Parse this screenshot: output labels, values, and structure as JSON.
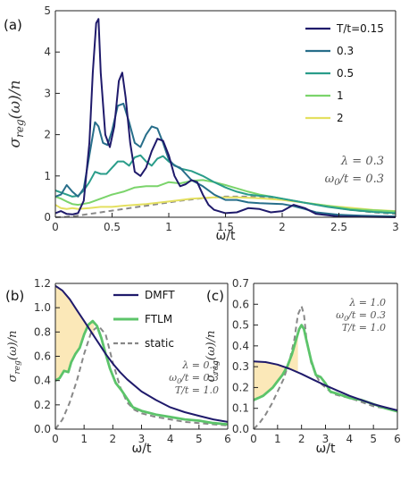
{
  "chart_data": [
    {
      "panel": "(a)",
      "type": "line",
      "xlabel": "ω/t",
      "ylabel": "σreg(ω)/n",
      "xlim": [
        0,
        3
      ],
      "ylim": [
        0,
        5
      ],
      "xticks": [
        "0",
        "0.5",
        "1",
        "1.5",
        "2",
        "2.5",
        "3"
      ],
      "yticks": [
        "0",
        "1",
        "2",
        "3",
        "4",
        "5"
      ],
      "legend_position": "top-right",
      "annotations": [
        "λ = 0.3",
        "ω0/t = 0.3"
      ],
      "series": [
        {
          "name": "T/t=0.15",
          "color": "#1f1a6b",
          "dash": "solid",
          "x": [
            0,
            0.05,
            0.1,
            0.15,
            0.2,
            0.25,
            0.3,
            0.33,
            0.36,
            0.38,
            0.4,
            0.44,
            0.48,
            0.52,
            0.56,
            0.59,
            0.62,
            0.66,
            0.7,
            0.75,
            0.8,
            0.85,
            0.9,
            0.95,
            1.0,
            1.05,
            1.1,
            1.15,
            1.2,
            1.25,
            1.3,
            1.35,
            1.4,
            1.5,
            1.6,
            1.7,
            1.8,
            1.9,
            2.0,
            2.1,
            2.2,
            2.3,
            2.5,
            2.7,
            3.0
          ],
          "y": [
            0.1,
            0.15,
            0.08,
            0.07,
            0.1,
            0.4,
            1.8,
            3.5,
            4.7,
            4.8,
            3.5,
            2.0,
            1.7,
            2.2,
            3.3,
            3.5,
            2.9,
            1.8,
            1.1,
            1.0,
            1.2,
            1.6,
            1.9,
            1.85,
            1.5,
            1.0,
            0.75,
            0.8,
            0.9,
            0.85,
            0.55,
            0.3,
            0.18,
            0.1,
            0.12,
            0.22,
            0.2,
            0.12,
            0.15,
            0.3,
            0.22,
            0.08,
            0.02,
            0.01,
            0.0
          ]
        },
        {
          "name": "0.3",
          "color": "#276e8a",
          "dash": "solid",
          "x": [
            0,
            0.05,
            0.1,
            0.15,
            0.2,
            0.25,
            0.3,
            0.35,
            0.38,
            0.42,
            0.46,
            0.5,
            0.55,
            0.6,
            0.65,
            0.7,
            0.75,
            0.8,
            0.85,
            0.9,
            0.95,
            1.0,
            1.05,
            1.1,
            1.15,
            1.2,
            1.3,
            1.4,
            1.5,
            1.6,
            1.7,
            1.8,
            1.9,
            2.0,
            2.1,
            2.2,
            2.3,
            2.5,
            2.7,
            3.0
          ],
          "y": [
            0.5,
            0.55,
            0.78,
            0.62,
            0.5,
            0.7,
            1.5,
            2.3,
            2.2,
            1.8,
            1.75,
            2.1,
            2.7,
            2.75,
            2.3,
            1.8,
            1.7,
            2.0,
            2.2,
            2.15,
            1.8,
            1.4,
            1.25,
            1.2,
            1.05,
            0.9,
            0.75,
            0.55,
            0.42,
            0.42,
            0.36,
            0.34,
            0.33,
            0.32,
            0.27,
            0.2,
            0.12,
            0.06,
            0.04,
            0.02
          ]
        },
        {
          "name": "0.5",
          "color": "#2a9d8a",
          "dash": "solid",
          "x": [
            0,
            0.05,
            0.1,
            0.15,
            0.2,
            0.25,
            0.3,
            0.35,
            0.4,
            0.45,
            0.5,
            0.55,
            0.6,
            0.65,
            0.7,
            0.75,
            0.8,
            0.85,
            0.9,
            0.95,
            1.0,
            1.1,
            1.2,
            1.3,
            1.4,
            1.5,
            1.6,
            1.7,
            1.8,
            1.9,
            2.0,
            2.1,
            2.2,
            2.4,
            2.6,
            2.8,
            3.0
          ],
          "y": [
            0.65,
            0.6,
            0.55,
            0.5,
            0.52,
            0.65,
            0.85,
            1.1,
            1.05,
            1.05,
            1.2,
            1.35,
            1.35,
            1.25,
            1.45,
            1.5,
            1.35,
            1.25,
            1.42,
            1.48,
            1.35,
            1.18,
            1.12,
            1.0,
            0.85,
            0.72,
            0.62,
            0.55,
            0.52,
            0.5,
            0.45,
            0.4,
            0.35,
            0.25,
            0.18,
            0.13,
            0.1
          ]
        },
        {
          "name": "1",
          "color": "#7bd46b",
          "dash": "solid",
          "x": [
            0,
            0.05,
            0.1,
            0.15,
            0.2,
            0.3,
            0.4,
            0.5,
            0.6,
            0.7,
            0.8,
            0.9,
            1.0,
            1.1,
            1.2,
            1.3,
            1.4,
            1.5,
            1.6,
            1.7,
            1.8,
            2.0,
            2.2,
            2.4,
            2.6,
            2.8,
            3.0
          ],
          "y": [
            0.5,
            0.45,
            0.38,
            0.32,
            0.3,
            0.35,
            0.45,
            0.55,
            0.62,
            0.72,
            0.75,
            0.75,
            0.85,
            0.82,
            0.88,
            0.9,
            0.85,
            0.78,
            0.7,
            0.62,
            0.55,
            0.45,
            0.35,
            0.28,
            0.2,
            0.17,
            0.14
          ]
        },
        {
          "name": "2",
          "color": "#e4e060",
          "dash": "solid",
          "x": [
            0,
            0.05,
            0.1,
            0.15,
            0.2,
            0.3,
            0.4,
            0.5,
            0.6,
            0.8,
            1.0,
            1.2,
            1.4,
            1.6,
            1.8,
            2.0,
            2.2,
            2.4,
            2.6,
            2.8,
            3.0
          ],
          "y": [
            0.3,
            0.22,
            0.2,
            0.22,
            0.2,
            0.22,
            0.25,
            0.25,
            0.28,
            0.32,
            0.38,
            0.45,
            0.48,
            0.48,
            0.46,
            0.42,
            0.35,
            0.28,
            0.23,
            0.18,
            0.15
          ]
        },
        {
          "name": "",
          "color": "#888888",
          "dash": "dashed",
          "x": [
            0,
            0.1,
            0.2,
            0.3,
            0.4,
            0.5,
            0.6,
            0.7,
            0.8,
            0.9,
            1.0,
            1.1,
            1.2,
            1.3,
            1.4,
            1.5,
            1.6,
            1.7,
            1.8,
            1.9,
            2.0,
            2.1,
            2.2,
            2.4,
            2.6,
            2.8,
            3.0
          ],
          "y": [
            0,
            0.01,
            0.04,
            0.08,
            0.12,
            0.16,
            0.2,
            0.24,
            0.28,
            0.32,
            0.36,
            0.4,
            0.43,
            0.46,
            0.48,
            0.5,
            0.5,
            0.5,
            0.49,
            0.47,
            0.44,
            0.4,
            0.35,
            0.26,
            0.18,
            0.12,
            0.08
          ]
        }
      ]
    },
    {
      "panel": "(b)",
      "type": "line",
      "xlabel": "ω/t",
      "ylabel": "σreg(ω)/n",
      "xlim": [
        0,
        6
      ],
      "ylim": [
        0,
        1.2
      ],
      "xticks": [
        "0",
        "1",
        "2",
        "3",
        "4",
        "5",
        "6"
      ],
      "yticks": [
        "0.0",
        "0.2",
        "0.4",
        "0.6",
        "0.8",
        "1.0",
        "1.2"
      ],
      "legend_position": "top-right",
      "annotations": [
        "λ = 0.3",
        "ω0/t = 0.3",
        "T/t = 1.0"
      ],
      "shaded_region_color": "#fbe8b8",
      "series": [
        {
          "name": "DMFT",
          "color": "#1f1a6b",
          "dash": "solid",
          "x": [
            0,
            0.25,
            0.5,
            0.75,
            1.0,
            1.25,
            1.5,
            1.75,
            2.0,
            2.25,
            2.5,
            3.0,
            3.5,
            4.0,
            4.5,
            5.0,
            5.5,
            6.0
          ],
          "y": [
            1.18,
            1.14,
            1.07,
            0.98,
            0.89,
            0.8,
            0.71,
            0.62,
            0.54,
            0.47,
            0.41,
            0.31,
            0.24,
            0.18,
            0.14,
            0.11,
            0.08,
            0.06
          ]
        },
        {
          "name": "FTLM",
          "color": "#5cc46a",
          "dash": "solid",
          "x": [
            0,
            0.15,
            0.3,
            0.45,
            0.55,
            0.7,
            0.85,
            1.0,
            1.15,
            1.3,
            1.45,
            1.6,
            1.75,
            1.9,
            2.1,
            2.3,
            2.5,
            2.7,
            3.0,
            3.5,
            4.0,
            4.5,
            5.0,
            5.5,
            6.0
          ],
          "y": [
            0.4,
            0.42,
            0.48,
            0.47,
            0.55,
            0.62,
            0.67,
            0.78,
            0.86,
            0.89,
            0.85,
            0.75,
            0.62,
            0.5,
            0.38,
            0.32,
            0.25,
            0.18,
            0.15,
            0.12,
            0.1,
            0.08,
            0.07,
            0.05,
            0.04
          ]
        },
        {
          "name": "static",
          "color": "#888888",
          "dash": "dashed",
          "x": [
            0,
            0.25,
            0.5,
            0.75,
            1.0,
            1.25,
            1.5,
            1.75,
            2.0,
            2.25,
            2.5,
            2.75,
            3.0,
            3.5,
            4.0,
            4.5,
            5.0,
            5.5,
            6.0
          ],
          "y": [
            0,
            0.08,
            0.22,
            0.4,
            0.62,
            0.8,
            0.85,
            0.78,
            0.55,
            0.35,
            0.22,
            0.16,
            0.13,
            0.1,
            0.08,
            0.06,
            0.05,
            0.04,
            0.03
          ]
        }
      ]
    },
    {
      "panel": "(c)",
      "type": "line",
      "xlabel": "ω/t",
      "ylabel": "σreg(ω)/n",
      "xlim": [
        0,
        6
      ],
      "ylim": [
        0,
        0.7
      ],
      "xticks": [
        "0",
        "1",
        "2",
        "3",
        "4",
        "5",
        "6"
      ],
      "yticks": [
        "0.0",
        "0.1",
        "0.2",
        "0.3",
        "0.4",
        "0.5",
        "0.6",
        "0.7"
      ],
      "annotations": [
        "λ = 1.0",
        "ω0/t = 0.3",
        "T/t = 1.0"
      ],
      "shaded_region_color": "#fbe8b8",
      "series": [
        {
          "name": "DMFT",
          "color": "#1f1a6b",
          "dash": "solid",
          "x": [
            0,
            0.5,
            1.0,
            1.5,
            2.0,
            2.5,
            3.0,
            3.5,
            4.0,
            4.5,
            5.0,
            5.5,
            6.0
          ],
          "y": [
            0.325,
            0.322,
            0.31,
            0.29,
            0.265,
            0.237,
            0.21,
            0.185,
            0.16,
            0.14,
            0.12,
            0.105,
            0.09
          ]
        },
        {
          "name": "FTLM",
          "color": "#5cc46a",
          "dash": "solid",
          "x": [
            0,
            0.2,
            0.4,
            0.6,
            0.8,
            1.0,
            1.2,
            1.4,
            1.6,
            1.8,
            1.9,
            2.0,
            2.1,
            2.2,
            2.4,
            2.6,
            2.8,
            3.0,
            3.2,
            3.5,
            4.0,
            4.5,
            5.0,
            5.5,
            6.0
          ],
          "y": [
            0.14,
            0.15,
            0.16,
            0.18,
            0.2,
            0.23,
            0.26,
            0.3,
            0.36,
            0.44,
            0.48,
            0.5,
            0.48,
            0.43,
            0.33,
            0.26,
            0.25,
            0.22,
            0.18,
            0.17,
            0.15,
            0.14,
            0.12,
            0.1,
            0.085
          ]
        },
        {
          "name": "static",
          "color": "#888888",
          "dash": "dashed",
          "x": [
            0,
            0.25,
            0.5,
            0.75,
            1.0,
            1.25,
            1.5,
            1.7,
            1.85,
            2.0,
            2.1,
            2.2,
            2.4,
            2.6,
            2.8,
            3.0,
            3.3,
            3.6,
            4.0,
            4.5,
            5.0,
            5.5,
            6.0
          ],
          "y": [
            0,
            0.03,
            0.07,
            0.12,
            0.18,
            0.24,
            0.33,
            0.43,
            0.55,
            0.59,
            0.55,
            0.44,
            0.32,
            0.26,
            0.22,
            0.2,
            0.17,
            0.16,
            0.15,
            0.13,
            0.11,
            0.1,
            0.09
          ]
        }
      ]
    }
  ]
}
